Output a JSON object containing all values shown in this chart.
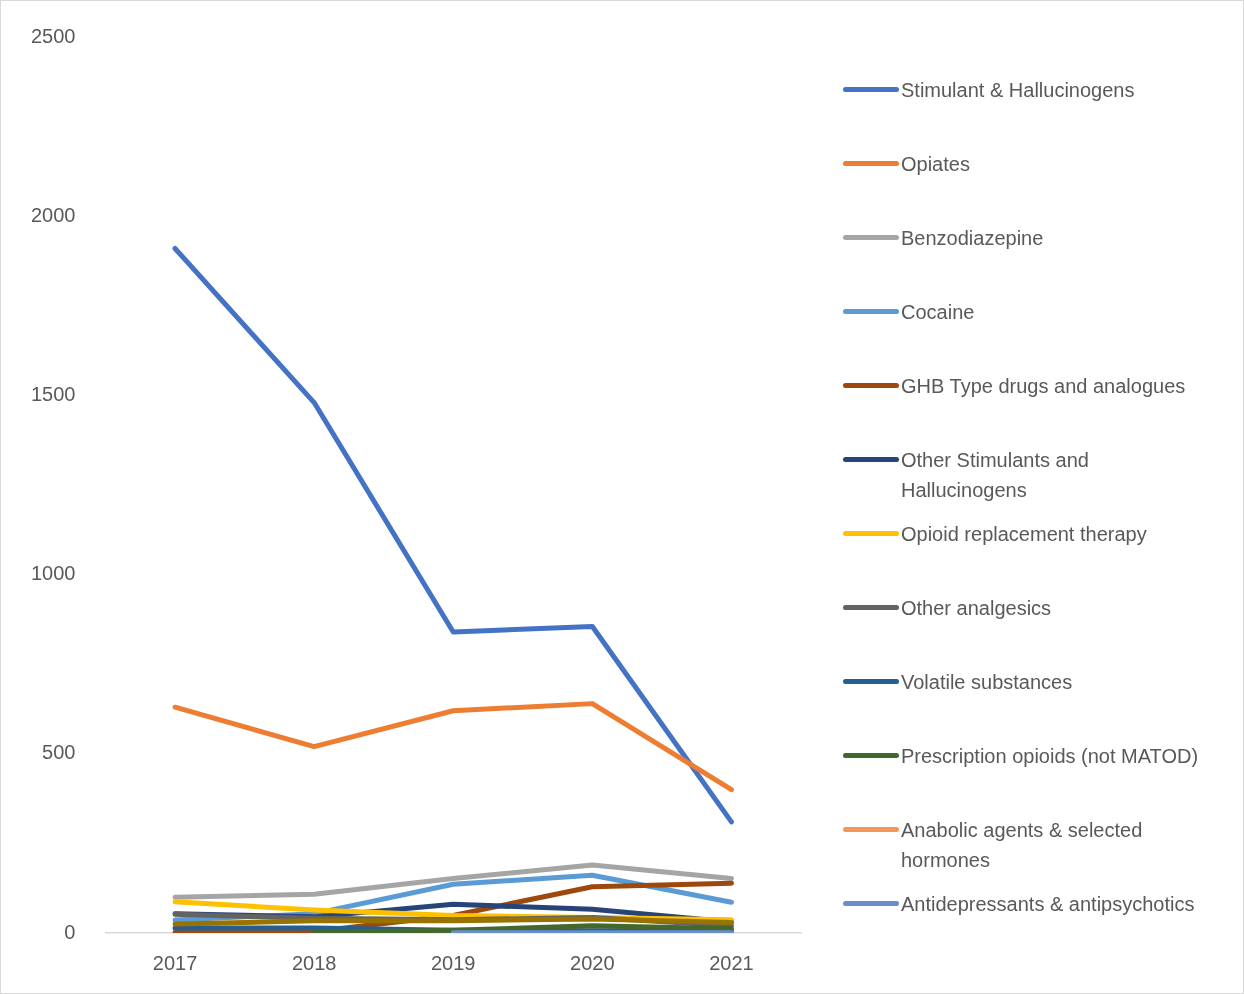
{
  "chart_data": {
    "type": "line",
    "categories": [
      "2017",
      "2018",
      "2019",
      "2020",
      "2021"
    ],
    "ylim": [
      0,
      2500
    ],
    "yticks": [
      0,
      500,
      1000,
      1500,
      2000,
      2500
    ],
    "grid": false,
    "legend": "right",
    "series": [
      {
        "name": "Stimulant & Hallucinogens",
        "color": "#4472c4",
        "values": [
          1910,
          1480,
          840,
          855,
          310
        ]
      },
      {
        "name": "Opiates",
        "color": "#ed7d31",
        "values": [
          630,
          520,
          620,
          640,
          400
        ]
      },
      {
        "name": "Benzodiazepine",
        "color": "#a5a5a5",
        "values": [
          100,
          108,
          152,
          190,
          152
        ]
      },
      {
        "name": "Cocaine",
        "color": "#5b9bd5",
        "values": [
          36,
          54,
          136,
          161,
          86
        ]
      },
      {
        "name": "GHB Type drugs and analogues",
        "color": "#9e480e",
        "values": [
          2,
          4,
          49,
          129,
          139
        ]
      },
      {
        "name": "Other Stimulants and Hallucinogens",
        "color": "#264478",
        "values": [
          54,
          45,
          80,
          66,
          31
        ]
      },
      {
        "name": "Opioid replacement therapy",
        "color": "#ffc000",
        "values": [
          87,
          64,
          49,
          43,
          37
        ]
      },
      {
        "name": "Other analgesics",
        "color": "#636363",
        "values": [
          52,
          41,
          37,
          43,
          20
        ]
      },
      {
        "name": "Volatile substances",
        "color": "#255e91",
        "values": [
          14,
          14,
          8,
          6,
          6
        ]
      },
      {
        "name": "Prescription opioids (not MATOD)",
        "color": "#43682b",
        "values": [
          null,
          2,
          8,
          20,
          12
        ]
      },
      {
        "name": "Anabolic agents & selected hormones",
        "color": "#f1975a",
        "values": [
          null,
          null,
          null,
          null,
          null
        ]
      },
      {
        "name": "Antidepressants & antipsychotics",
        "color": "#698ed0",
        "values": [
          null,
          null,
          1,
          1,
          1
        ]
      },
      {
        "color": "#997300",
        "values": [
          25,
          34,
          34,
          39,
          29
        ]
      }
    ]
  }
}
